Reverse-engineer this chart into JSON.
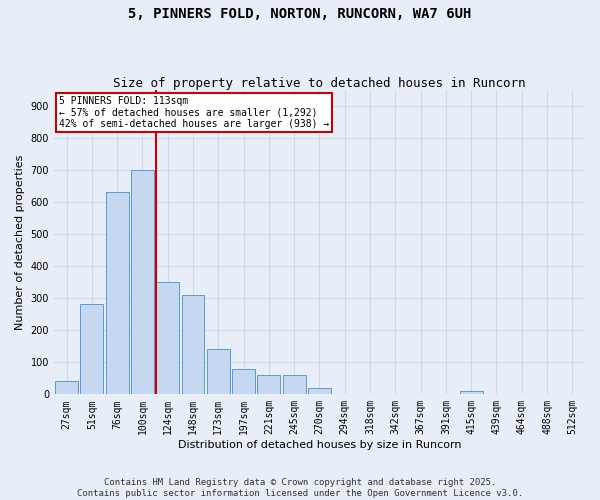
{
  "title": "5, PINNERS FOLD, NORTON, RUNCORN, WA7 6UH",
  "subtitle": "Size of property relative to detached houses in Runcorn",
  "xlabel": "Distribution of detached houses by size in Runcorn",
  "ylabel": "Number of detached properties",
  "footer_line1": "Contains HM Land Registry data © Crown copyright and database right 2025.",
  "footer_line2": "Contains public sector information licensed under the Open Government Licence v3.0.",
  "categories": [
    "27sqm",
    "51sqm",
    "76sqm",
    "100sqm",
    "124sqm",
    "148sqm",
    "173sqm",
    "197sqm",
    "221sqm",
    "245sqm",
    "270sqm",
    "294sqm",
    "318sqm",
    "342sqm",
    "367sqm",
    "391sqm",
    "415sqm",
    "439sqm",
    "464sqm",
    "488sqm",
    "512sqm"
  ],
  "bar_values": [
    40,
    280,
    630,
    700,
    350,
    310,
    140,
    80,
    60,
    60,
    20,
    0,
    0,
    0,
    0,
    0,
    10,
    0,
    0,
    0,
    0
  ],
  "bar_color": "#c5d8f0",
  "bar_edge_color": "#5b9bd5",
  "grid_color": "#d0d8e8",
  "background_color": "#e8eef8",
  "annotation_line1": "5 PINNERS FOLD: 113sqm",
  "annotation_line2": "← 57% of detached houses are smaller (1,292)",
  "annotation_line3": "42% of semi-detached houses are larger (938) →",
  "annotation_box_color": "#ffffff",
  "annotation_border_color": "#cc0000",
  "ylim": [
    0,
    950
  ],
  "yticks": [
    0,
    100,
    200,
    300,
    400,
    500,
    600,
    700,
    800,
    900
  ],
  "title_fontsize": 10,
  "subtitle_fontsize": 9,
  "axis_label_fontsize": 8,
  "tick_fontsize": 7,
  "footer_fontsize": 6.5
}
